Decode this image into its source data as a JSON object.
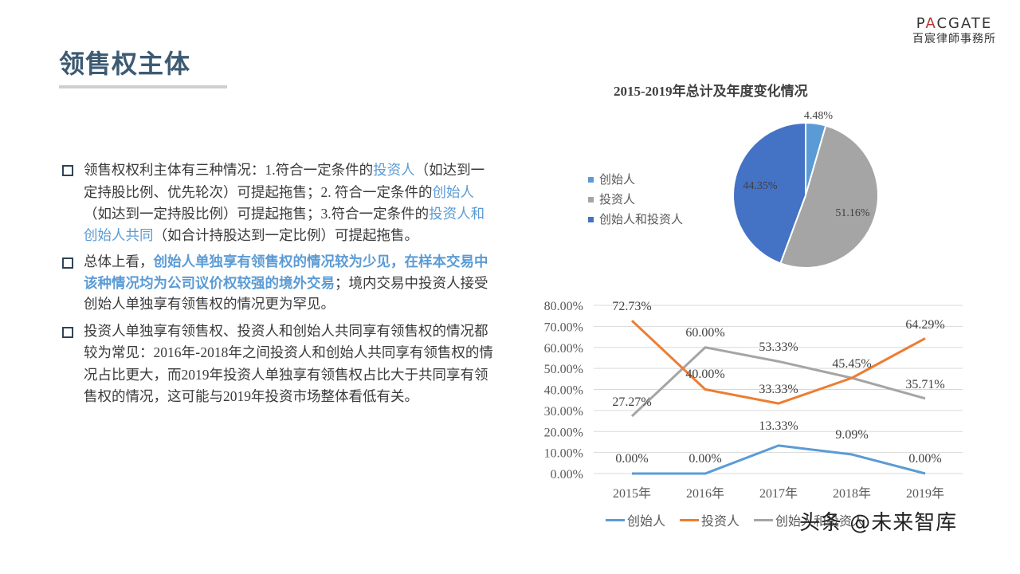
{
  "header": {
    "title": "领售权主体",
    "logo_en_pre": "P",
    "logo_en_a": "A",
    "logo_en_post": "CGATE",
    "logo_cn": "百宸律師事務所"
  },
  "bullets": [
    {
      "segments": [
        {
          "text": "领售权权利主体有三种情况：",
          "style": "normal"
        },
        {
          "text": "1.",
          "style": "num"
        },
        {
          "text": "符合一定条件的",
          "style": "normal"
        },
        {
          "text": "投资人",
          "style": "hl"
        },
        {
          "text": "（如达到一定持股比例、优先轮次）可提起拖售；",
          "style": "normal"
        },
        {
          "text": "2. ",
          "style": "num"
        },
        {
          "text": "符合一定条件的",
          "style": "normal"
        },
        {
          "text": "创始人",
          "style": "hl"
        },
        {
          "text": "（如达到一定持股比例）可提起拖售；",
          "style": "normal"
        },
        {
          "text": "3.",
          "style": "num"
        },
        {
          "text": "符合一定条件的",
          "style": "normal"
        },
        {
          "text": "投资人和创始人共同",
          "style": "hl"
        },
        {
          "text": "（如合计持股达到一定比例）可提起拖售。",
          "style": "normal"
        }
      ]
    },
    {
      "segments": [
        {
          "text": "总体上看，",
          "style": "normal"
        },
        {
          "text": "创始人单独享有领售权的情况较为少见，在样本交易中该种情况均为公司议价权较强的境外交易",
          "style": "hlb"
        },
        {
          "text": "；境内交易中投资人接受创始人单独享有领售权的情况更为罕见。",
          "style": "normal"
        }
      ]
    },
    {
      "segments": [
        {
          "text": "投资人单独享有领售权、投资人和创始人共同享有领售权的情况都较为常见：",
          "style": "normal"
        },
        {
          "text": "2016",
          "style": "num"
        },
        {
          "text": "年-",
          "style": "normal"
        },
        {
          "text": "2018",
          "style": "num"
        },
        {
          "text": "年之间投资人和创始人共同享有领售权的情况占比更大，而",
          "style": "normal"
        },
        {
          "text": "2019",
          "style": "num"
        },
        {
          "text": "年投资人单独享有领售权占比大于共同享有领售权的情况，这可能与",
          "style": "normal"
        },
        {
          "text": "2019",
          "style": "num"
        },
        {
          "text": "年投资市场整体看低有关。",
          "style": "normal"
        }
      ]
    }
  ],
  "watermark": "头条 @未来智库",
  "colors": {
    "founder": "#5b9bd5",
    "investor": "#ed7d31",
    "both_line": "#a5a5a5",
    "both_pie": "#4472c4",
    "investor_pie": "#a5a5a5",
    "title": "#3d5a73"
  },
  "chart_data": [
    {
      "type": "pie",
      "title": "2015-2019年总计及年度变化情况",
      "categories": [
        "创始人",
        "投资人",
        "创始人和投资人"
      ],
      "values": [
        4.48,
        51.16,
        44.35
      ],
      "labels": [
        "4.48%",
        "51.16%",
        "44.35%"
      ],
      "colors": [
        "#5b9bd5",
        "#a5a5a5",
        "#4472c4"
      ],
      "legend_position": "left"
    },
    {
      "type": "line",
      "title": "",
      "categories": [
        "2015年",
        "2016年",
        "2017年",
        "2018年",
        "2019年"
      ],
      "series": [
        {
          "name": "创始人",
          "values": [
            0.0,
            0.0,
            13.33,
            9.09,
            0.0
          ],
          "labels": [
            "0.00%",
            "0.00%",
            "13.33%",
            "9.09%",
            "0.00%"
          ],
          "color": "#5b9bd5"
        },
        {
          "name": "投资人",
          "values": [
            72.73,
            40.0,
            33.33,
            45.45,
            64.29
          ],
          "labels": [
            "72.73%",
            "40.00%",
            "33.33%",
            "45.45%",
            "64.29%"
          ],
          "color": "#ed7d31"
        },
        {
          "name": "创始人和投资人",
          "values": [
            27.27,
            60.0,
            53.33,
            45.45,
            35.71
          ],
          "labels": [
            "27.27%",
            "60.00%",
            "53.33%",
            "",
            "35.71%"
          ],
          "color": "#a5a5a5"
        }
      ],
      "ylim": [
        0,
        80
      ],
      "yticks": [
        "0.00%",
        "10.00%",
        "20.00%",
        "30.00%",
        "40.00%",
        "50.00%",
        "60.00%",
        "70.00%",
        "80.00%"
      ],
      "grid": true,
      "legend_position": "bottom",
      "xlabel": "",
      "ylabel": ""
    }
  ]
}
